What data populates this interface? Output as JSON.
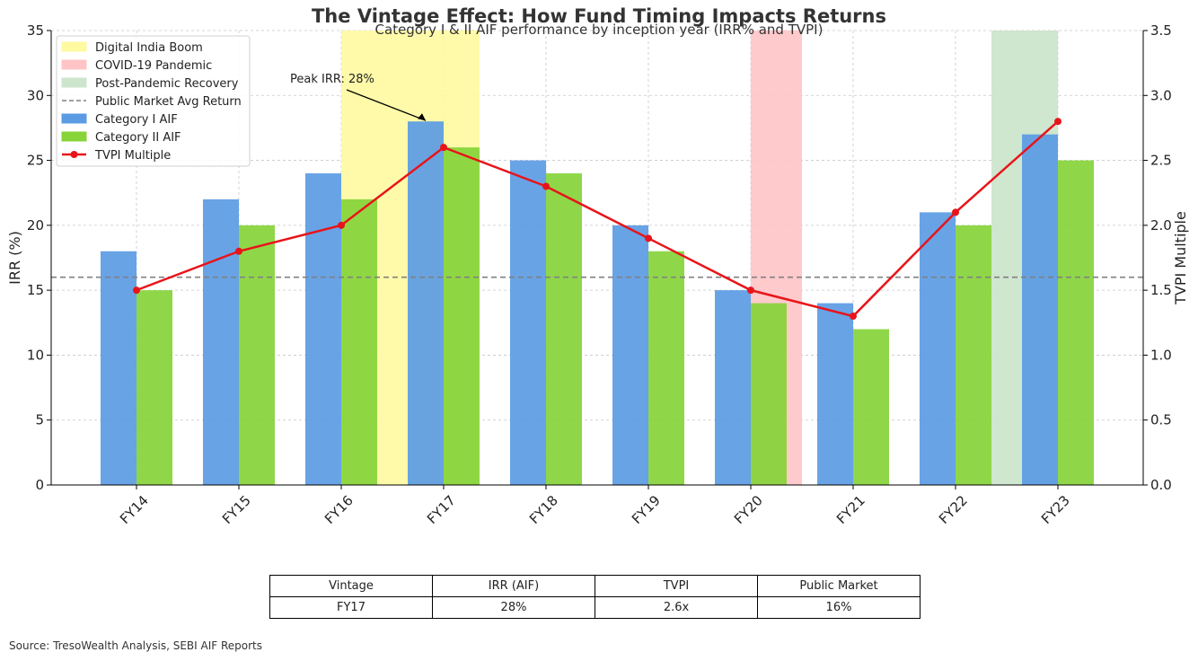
{
  "title": "The Vintage Effect: How Fund Timing Impacts Returns",
  "subtitle": "Category I & II AIF performance by inception year (IRR% and TVPI)",
  "source": "Source: TresoWealth Analysis, SEBI AIF Reports",
  "colors": {
    "cat1": "#5b9be4",
    "cat2": "#86d43a",
    "tvpi": "#e8141a",
    "public": "#808080",
    "digital": "#fff9a0",
    "covid": "#ffc4c6",
    "recovery": "#cce5cc"
  },
  "chart_data": {
    "type": "bar",
    "title": "The Vintage Effect: How Fund Timing Impacts Returns",
    "subtitle": "Category I & II AIF performance by inception year (IRR% and TVPI)",
    "categories": [
      "FY14",
      "FY15",
      "FY16",
      "FY17",
      "FY18",
      "FY19",
      "FY20",
      "FY21",
      "FY22",
      "FY23"
    ],
    "series": [
      {
        "name": "Category I AIF",
        "axis": "left",
        "kind": "bar",
        "values": [
          18,
          22,
          24,
          28,
          25,
          20,
          15,
          14,
          21,
          27
        ]
      },
      {
        "name": "Category II AIF",
        "axis": "left",
        "kind": "bar",
        "values": [
          15,
          20,
          22,
          26,
          24,
          18,
          14,
          12,
          20,
          25
        ]
      },
      {
        "name": "TVPI Multiple",
        "axis": "right",
        "kind": "line",
        "values": [
          1.5,
          1.8,
          2.0,
          2.6,
          2.3,
          1.9,
          1.5,
          1.3,
          2.1,
          2.8
        ]
      }
    ],
    "reference_line": {
      "name": "Public Market Avg Return",
      "value": 16,
      "axis": "left",
      "style": "dashed"
    },
    "shaded_periods": [
      {
        "name": "Digital India Boom",
        "from": "FY16",
        "to": "FY17"
      },
      {
        "name": "COVID-19 Pandemic",
        "from": "FY20",
        "to": "FY20"
      },
      {
        "name": "Post-Pandemic Recovery",
        "from": "FY23",
        "to": "FY23"
      }
    ],
    "annotation": {
      "text": "Peak IRR: 28%",
      "points_to": "FY17"
    },
    "ylabel": "IRR (%)",
    "y2label": "TVPI Multiple",
    "ylim": [
      0,
      35
    ],
    "y2lim": [
      0,
      3.5
    ],
    "yticks": [
      "0",
      "5",
      "10",
      "15",
      "20",
      "25",
      "30",
      "35"
    ],
    "y2ticks": [
      "0.0",
      "0.5",
      "1.0",
      "1.5",
      "2.0",
      "2.5",
      "3.0",
      "3.5"
    ],
    "grid": true,
    "legend": "top-left"
  },
  "summary_table": {
    "headers": [
      "Vintage",
      "IRR (AIF)",
      "TVPI",
      "Public Market"
    ],
    "row": [
      "FY17",
      "28%",
      "2.6x",
      "16%"
    ]
  }
}
